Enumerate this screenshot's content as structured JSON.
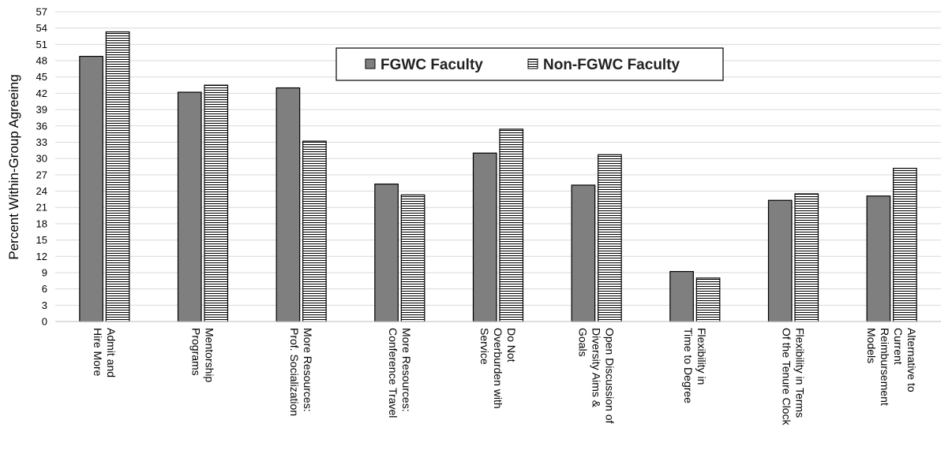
{
  "chart_data": {
    "type": "bar",
    "title": "",
    "xlabel": "",
    "ylabel": "Percent Within-Group Agreeing",
    "ylim": [
      0,
      57
    ],
    "yticks": [
      0,
      3,
      6,
      9,
      12,
      15,
      18,
      21,
      24,
      27,
      30,
      33,
      36,
      39,
      42,
      45,
      48,
      51,
      54,
      57
    ],
    "grid": true,
    "legend_position": "top-center",
    "categories": [
      [
        "Hire More",
        "Admit and"
      ],
      [
        "Programs",
        "Mentorship"
      ],
      [
        "Prof. Socialization",
        "More Resources:"
      ],
      [
        "Conference Travel",
        "More Resources:"
      ],
      [
        "Service",
        "Overburden with",
        "Do Not"
      ],
      [
        "Goals",
        "Diversity Aims &",
        "Open Discussion of"
      ],
      [
        "Time to Degree",
        "Flexibility in"
      ],
      [
        "Of the Tenure Clock",
        "Flexibility in Terms"
      ],
      [
        "Models",
        "Reimbursement",
        "Current",
        "Alternative to"
      ]
    ],
    "series": [
      {
        "name": "FGWC Faculty",
        "fill": "#7f7f7f",
        "pattern": "solid",
        "values": [
          48.8,
          42.2,
          43.0,
          25.3,
          31.0,
          25.1,
          9.2,
          22.3,
          23.1
        ]
      },
      {
        "name": "Non-FGWC Faculty",
        "fill": "#ffffff",
        "pattern": "horizontal-lines",
        "values": [
          53.3,
          43.5,
          33.2,
          23.3,
          35.4,
          30.7,
          8.0,
          23.5,
          28.2
        ]
      }
    ]
  }
}
